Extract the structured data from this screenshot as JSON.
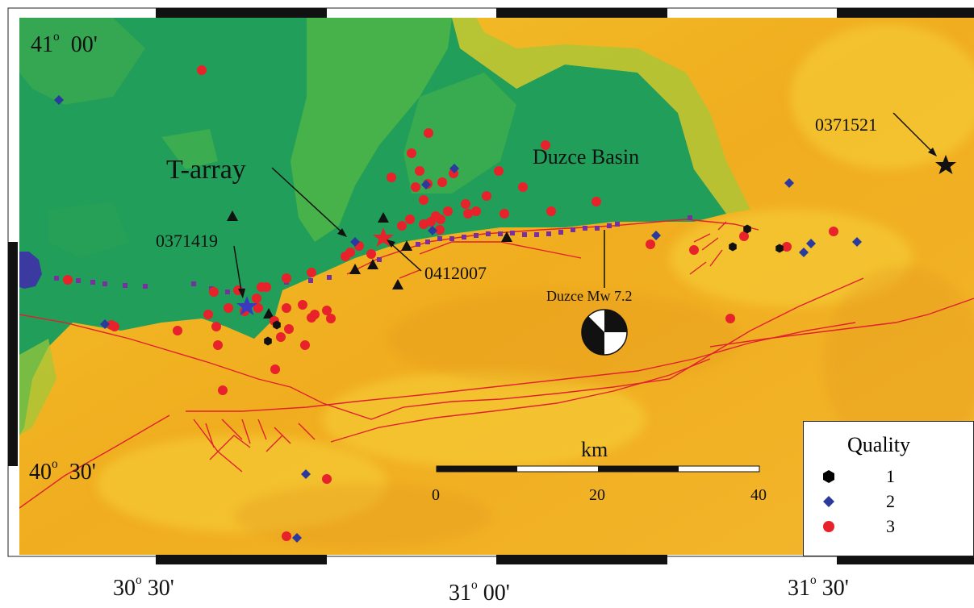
{
  "map": {
    "lat_labels": [
      {
        "deg": "41",
        "min": "00'"
      },
      {
        "deg": "40",
        "min": "30'"
      }
    ],
    "lon_labels": [
      {
        "deg": "30",
        "min": "30'"
      },
      {
        "deg": "31",
        "min": "00'"
      },
      {
        "deg": "31",
        "min": "30'"
      }
    ],
    "labels": {
      "t_array": "T-array",
      "duzce_basin": "Duzce Basin",
      "event_a": "0371521",
      "event_b": "0371419",
      "event_c": "0412007",
      "mainshock": "Duzce Mw 7.2"
    },
    "scale_bar": {
      "title": "km",
      "ticks": [
        "0",
        "20",
        "40"
      ]
    },
    "legend": {
      "title": "Quality",
      "items": [
        {
          "label": "1",
          "symbol": "hexagon",
          "color": "#000000"
        },
        {
          "label": "2",
          "symbol": "diamond",
          "color": "#2a3a9e"
        },
        {
          "label": "3",
          "symbol": "circle",
          "color": "#e8222a"
        }
      ]
    },
    "colors": {
      "lowland": "#1e9e58",
      "upland": "#f0b020",
      "fault": "#e02030",
      "station": "#7a2fa0",
      "quality_1": "#000000",
      "quality_2": "#2a3a9e",
      "quality_3": "#e8222a"
    }
  }
}
